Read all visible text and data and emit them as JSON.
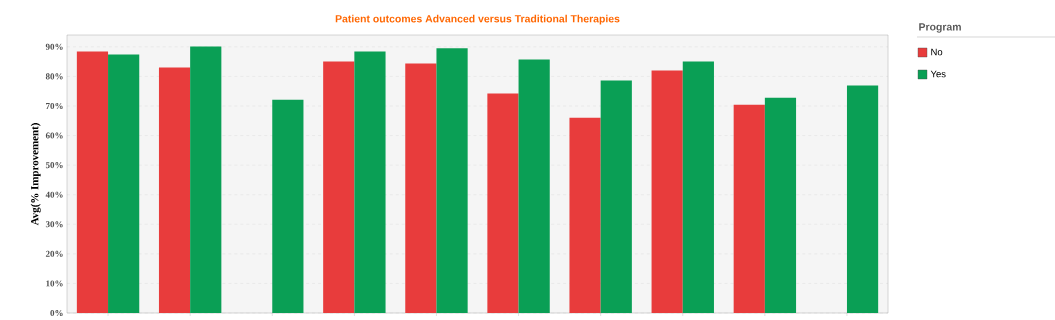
{
  "chart_data": {
    "type": "bar",
    "title": "Patient outcomes Advanced versus Traditional Therapies",
    "ylabel": "Avg(% Improvement)",
    "legend_title": "Program",
    "categories": [
      null,
      null,
      null,
      null,
      null,
      null,
      null,
      null,
      null,
      null
    ],
    "series": [
      {
        "name": "No",
        "color": "#e83c3c",
        "values": [
          88.4,
          83.0,
          null,
          85.0,
          84.4,
          74.2,
          66.0,
          82.0,
          70.4,
          null
        ]
      },
      {
        "name": "Yes",
        "color": "#0a9f55",
        "values": [
          87.4,
          90.1,
          72.1,
          88.4,
          89.5,
          85.7,
          78.6,
          85.0,
          72.8,
          76.9
        ]
      }
    ],
    "ylim": [
      0,
      94
    ],
    "yticks": [
      {
        "value": 0,
        "label": "0%"
      },
      {
        "value": 10,
        "label": "10%"
      },
      {
        "value": 20,
        "label": "20%"
      },
      {
        "value": 30,
        "label": "30%"
      },
      {
        "value": 40,
        "label": "40%"
      },
      {
        "value": 50,
        "label": "50%"
      },
      {
        "value": 60,
        "label": "60%"
      },
      {
        "value": 70,
        "label": "70%"
      },
      {
        "value": 80,
        "label": "80%"
      },
      {
        "value": 90,
        "label": "90%"
      }
    ],
    "grid": "y",
    "legend": "right",
    "tick_labels": "y"
  }
}
